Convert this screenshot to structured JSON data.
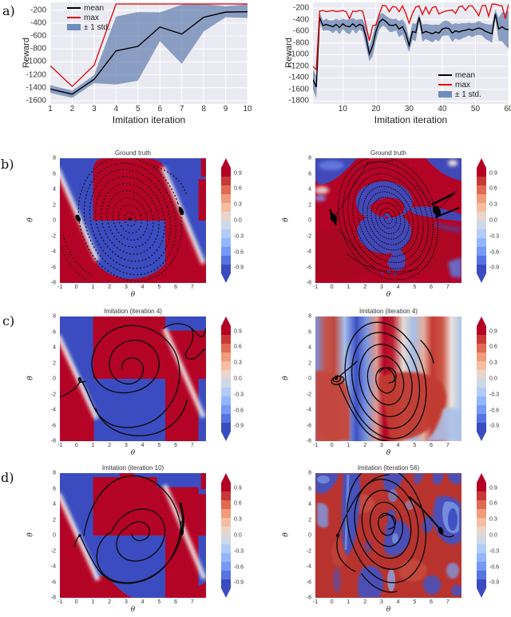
{
  "panel_labels": {
    "a": "a)",
    "b": "b)",
    "c": "c)",
    "d": "d)"
  },
  "colors": {
    "mean_line": "#000000",
    "max_line": "#e60000",
    "std_band": "rgba(72,103,160,0.6)",
    "std_band_swatch": "#6d8ebc",
    "plot_bg": "#eaeaf2",
    "grid": "#ffffff",
    "heat_red": "#b40426",
    "heat_blue": "#3b4cc0"
  },
  "chart_data": [
    {
      "type": "line",
      "xlabel": "Imitation iteration",
      "ylabel": "Reward",
      "legend": [
        "mean",
        "max",
        "± 1 std."
      ],
      "legend_position": "top-left",
      "xlim": [
        1,
        10
      ],
      "ylim": [
        -1650,
        -80
      ],
      "x_ticks": [
        1,
        2,
        3,
        4,
        5,
        6,
        7,
        8,
        9,
        10
      ],
      "y_ticks": [
        -200,
        -400,
        -600,
        -800,
        -1000,
        -1200,
        -1400,
        -1600
      ],
      "x": [
        1,
        2,
        3,
        4,
        5,
        6,
        7,
        8,
        9,
        10
      ],
      "mean": [
        -1420,
        -1500,
        -1270,
        -830,
        -760,
        -460,
        -570,
        -310,
        -230,
        -225
      ],
      "max": [
        -1060,
        -1380,
        -1050,
        -105,
        -105,
        -105,
        -105,
        -105,
        -105,
        -105
      ],
      "band_lower": [
        -1480,
        -1555,
        -1330,
        -1350,
        -1290,
        -680,
        -1030,
        -530,
        -310,
        -320
      ],
      "band_upper": [
        -1360,
        -1445,
        -1205,
        -300,
        -230,
        -235,
        -115,
        -105,
        -140,
        -110
      ]
    },
    {
      "type": "line",
      "xlabel": "Imitation iteration",
      "ylabel": "Reward",
      "legend": [
        "mean",
        "max",
        "± 1 std."
      ],
      "legend_position": "bottom-right",
      "xlim": [
        1,
        60
      ],
      "ylim": [
        -1850,
        -100
      ],
      "x_ticks": [
        10,
        20,
        30,
        40,
        50,
        60
      ],
      "y_ticks": [
        -200,
        -400,
        -600,
        -800,
        -1000,
        -1200,
        -1400,
        -1600,
        -1800
      ],
      "x": [
        1,
        2,
        3,
        4,
        5,
        6,
        7,
        8,
        9,
        10,
        11,
        12,
        13,
        14,
        15,
        16,
        17,
        18,
        19,
        20,
        21,
        22,
        23,
        24,
        25,
        26,
        27,
        28,
        29,
        30,
        31,
        32,
        33,
        34,
        35,
        36,
        37,
        38,
        39,
        40,
        41,
        42,
        43,
        44,
        45,
        46,
        47,
        48,
        49,
        50,
        51,
        52,
        53,
        54,
        55,
        56,
        57,
        58,
        59,
        60
      ],
      "mean": [
        -1430,
        -1560,
        -360,
        -500,
        -480,
        -500,
        -520,
        -480,
        -530,
        -470,
        -510,
        -520,
        -470,
        -520,
        -480,
        -500,
        -700,
        -990,
        -850,
        -600,
        -440,
        -390,
        -430,
        -490,
        -500,
        -480,
        -560,
        -520,
        -640,
        -840,
        -600,
        -620,
        -360,
        -630,
        -600,
        -620,
        -640,
        -610,
        -630,
        -560,
        -540,
        -550,
        -630,
        -590,
        -610,
        -590,
        -580,
        -560,
        -580,
        -560,
        -540,
        -560,
        -600,
        -620,
        -640,
        -300,
        -560,
        -520,
        -560,
        -570
      ],
      "max": [
        -1200,
        -1260,
        -250,
        -240,
        -260,
        -250,
        -240,
        -260,
        -250,
        -240,
        -260,
        -380,
        -250,
        -260,
        -240,
        -250,
        -500,
        -760,
        -500,
        -490,
        -300,
        -150,
        -160,
        -260,
        -170,
        -180,
        -260,
        -160,
        -290,
        -460,
        -290,
        -180,
        -160,
        -310,
        -180,
        -300,
        -190,
        -170,
        -300,
        -270,
        -250,
        -240,
        -230,
        -290,
        -180,
        -160,
        -240,
        -160,
        -160,
        -240,
        -330,
        -160,
        -150,
        -340,
        -130,
        -130,
        -150,
        -160,
        -380,
        -130
      ],
      "std": [
        170,
        190,
        80,
        90,
        100,
        90,
        110,
        100,
        120,
        90,
        110,
        130,
        100,
        120,
        90,
        110,
        170,
        120,
        180,
        160,
        130,
        110,
        100,
        120,
        110,
        100,
        140,
        130,
        160,
        120,
        140,
        150,
        60,
        150,
        130,
        140,
        150,
        130,
        140,
        120,
        130,
        120,
        150,
        130,
        140,
        130,
        120,
        110,
        120,
        110,
        120,
        110,
        130,
        140,
        160,
        80,
        200,
        250,
        280,
        330
      ]
    }
  ],
  "heatmaps": [
    {
      "title": "Ground truth",
      "xlabel": "θ",
      "ylabel": "θ̇",
      "x_range": [
        -1,
        7.83
      ],
      "y_range": [
        -8,
        8
      ],
      "x_ticks": [
        -1,
        0,
        1,
        2,
        3,
        4,
        5,
        6,
        7
      ],
      "y_ticks": [
        8,
        6,
        4,
        2,
        0,
        -2,
        -4,
        -6,
        -8
      ],
      "colorbar_ticks": [
        "0.9",
        "0.6",
        "0.3",
        "0.0",
        "-0.3",
        "-0.6",
        "-0.9"
      ],
      "pattern": "blocky red/blue value regions with diagonal white switching bands",
      "trajectory": "dotted spiral samples"
    },
    {
      "title": "Ground truth",
      "xlabel": "θ",
      "ylabel": "θ̇",
      "x_range": [
        -1,
        7.83
      ],
      "y_range": [
        -8,
        8
      ],
      "x_ticks": [
        -1,
        0,
        1,
        2,
        3,
        4,
        5,
        6,
        7
      ],
      "y_ticks": [
        8,
        6,
        4,
        2,
        0,
        -2,
        -4,
        -6,
        -8
      ],
      "colorbar_ticks": [
        "0.9",
        "0.6",
        "0.3",
        "0.0",
        "-0.3",
        "-0.6",
        "-0.9"
      ],
      "pattern": "mostly red with chaotic blue swirl regions",
      "trajectory": "dense dotted spiral samples"
    },
    {
      "title": "Imitation (iteration 4)",
      "xlabel": "θ",
      "ylabel": "θ̇",
      "x_range": [
        -1,
        7.83
      ],
      "y_range": [
        -8,
        8
      ],
      "x_ticks": [
        -1,
        0,
        1,
        2,
        3,
        4,
        5,
        6,
        7
      ],
      "y_ticks": [
        8,
        6,
        4,
        2,
        0,
        -2,
        -4,
        -6,
        -8
      ],
      "colorbar_ticks": [
        "0.9",
        "0.6",
        "0.3",
        "0.0",
        "-0.3",
        "-0.6",
        "-0.9"
      ],
      "pattern": "blocky red/blue regions with diagonal white bands",
      "trajectory": "solid spiral rollout"
    },
    {
      "title": "Imitation (iteration 4)",
      "xlabel": "θ",
      "ylabel": "θ̇",
      "x_range": [
        -1,
        7.83
      ],
      "y_range": [
        -8,
        8
      ],
      "x_ticks": [
        -1,
        0,
        1,
        2,
        3,
        4,
        5,
        6,
        7
      ],
      "y_ticks": [
        8,
        6,
        4,
        2,
        0,
        -2,
        -4,
        -6,
        -8
      ],
      "colorbar_ticks": [
        "0.9",
        "0.6",
        "0.3",
        "0.0",
        "-0.3",
        "-0.6",
        "-0.9"
      ],
      "pattern": "smooth vertical red/blue bands with lower red blobs",
      "trajectory": "solid spiral rollout"
    },
    {
      "title": "Imitation (iteration 10)",
      "xlabel": "θ",
      "ylabel": "θ̇",
      "x_range": [
        -1,
        7.83
      ],
      "y_range": [
        -8,
        8
      ],
      "x_ticks": [
        -1,
        0,
        1,
        2,
        3,
        4,
        5,
        6,
        7
      ],
      "y_ticks": [
        8,
        6,
        4,
        2,
        0,
        -2,
        -4,
        -6,
        -8
      ],
      "colorbar_ticks": [
        "0.9",
        "0.6",
        "0.3",
        "0.0",
        "-0.3",
        "-0.6",
        "-0.9"
      ],
      "pattern": "blocky red/blue regions with notches and diagonal bands",
      "trajectory": "solid spiral rollout"
    },
    {
      "title": "Imitation (iteration 56)",
      "xlabel": "θ",
      "ylabel": "θ̇",
      "x_range": [
        -1,
        7.83
      ],
      "y_range": [
        -8,
        8
      ],
      "x_ticks": [
        -1,
        0,
        1,
        2,
        3,
        4,
        5,
        6,
        7
      ],
      "y_ticks": [
        8,
        6,
        4,
        2,
        0,
        -2,
        -4,
        -6,
        -8
      ],
      "colorbar_ticks": [
        "0.9",
        "0.6",
        "0.3",
        "0.0",
        "-0.3",
        "-0.6",
        "-0.9"
      ],
      "pattern": "blotchy organic red/blue regions",
      "trajectory": "solid spiral rollout"
    }
  ]
}
